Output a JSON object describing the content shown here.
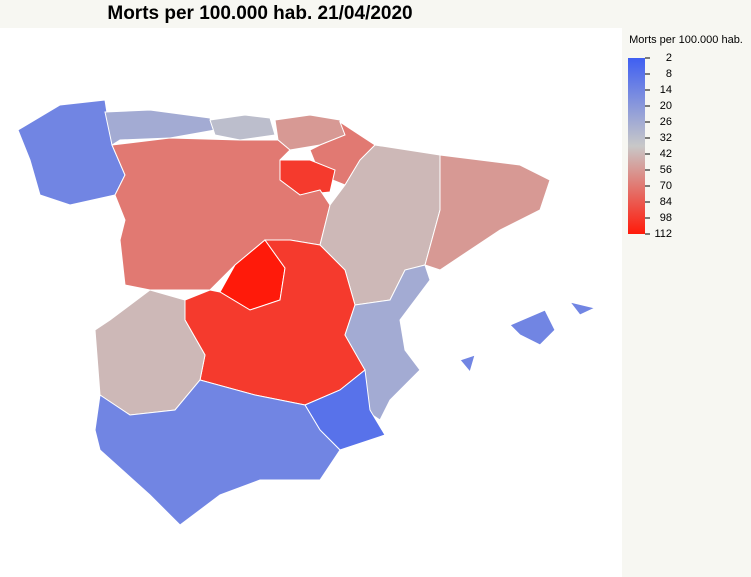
{
  "title": "Morts per 100.000 hab. 21/04/2020",
  "legend": {
    "title": "Morts per 100.000 hab.",
    "ticks": [
      2,
      8,
      14,
      20,
      26,
      32,
      42,
      56,
      70,
      84,
      98,
      112
    ],
    "colors": [
      "#3f5ff2",
      "#c8c8c8",
      "#ff1a0a"
    ]
  },
  "regions": {
    "values": [
      14,
      26,
      32,
      56,
      70,
      98,
      70,
      42,
      56,
      112,
      98,
      42,
      26,
      8,
      14,
      14
    ]
  }
}
